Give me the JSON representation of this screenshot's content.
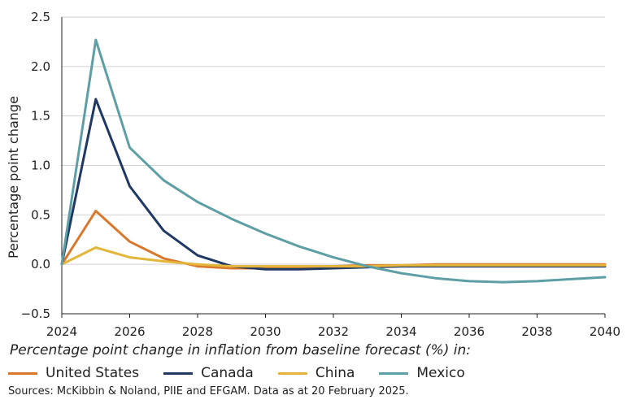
{
  "chart_data": {
    "type": "line",
    "title": "",
    "ylabel": "Percentage point change",
    "xlabel": "",
    "xlim": [
      2024,
      2040
    ],
    "ylim": [
      -0.5,
      2.5
    ],
    "xticks": [
      "2024",
      "2026",
      "2028",
      "2030",
      "2032",
      "2034",
      "2036",
      "2038",
      "2040"
    ],
    "yticks": [
      "2.5",
      "2.0",
      "1.5",
      "1.0",
      "0.5",
      "0.0",
      "−0.5"
    ],
    "x": [
      2024,
      2025,
      2026,
      2027,
      2028,
      2029,
      2030,
      2031,
      2032,
      2033,
      2034,
      2035,
      2036,
      2037,
      2038,
      2039,
      2040
    ],
    "series": [
      {
        "name": "United States",
        "color": "#d9782d",
        "values": [
          0.0,
          0.54,
          0.23,
          0.06,
          -0.02,
          -0.04,
          -0.04,
          -0.03,
          -0.02,
          -0.01,
          -0.01,
          0.0,
          0.0,
          0.0,
          0.0,
          0.0,
          0.0
        ]
      },
      {
        "name": "Canada",
        "color": "#1f3864",
        "values": [
          0.0,
          1.67,
          0.79,
          0.34,
          0.09,
          -0.02,
          -0.05,
          -0.05,
          -0.04,
          -0.03,
          -0.02,
          -0.02,
          -0.02,
          -0.02,
          -0.02,
          -0.02,
          -0.02
        ]
      },
      {
        "name": "China",
        "color": "#e3b53a",
        "values": [
          0.0,
          0.17,
          0.07,
          0.03,
          0.0,
          -0.02,
          -0.02,
          -0.02,
          -0.02,
          -0.02,
          -0.01,
          -0.01,
          -0.01,
          -0.01,
          -0.01,
          -0.01,
          -0.01
        ]
      },
      {
        "name": "Mexico",
        "color": "#5e9ea5",
        "values": [
          0.0,
          2.27,
          1.18,
          0.85,
          0.63,
          0.46,
          0.31,
          0.18,
          0.07,
          -0.02,
          -0.09,
          -0.14,
          -0.17,
          -0.18,
          -0.17,
          -0.15,
          -0.13
        ]
      }
    ],
    "grid": {
      "horizontal": true,
      "vertical": false
    },
    "legend_position": "bottom"
  },
  "legend_title": "Percentage point change in inflation from baseline forecast (%) in:",
  "source": "Sources: McKibbin & Noland, PIIE and EFGAM. Data as at 20 February 2025."
}
